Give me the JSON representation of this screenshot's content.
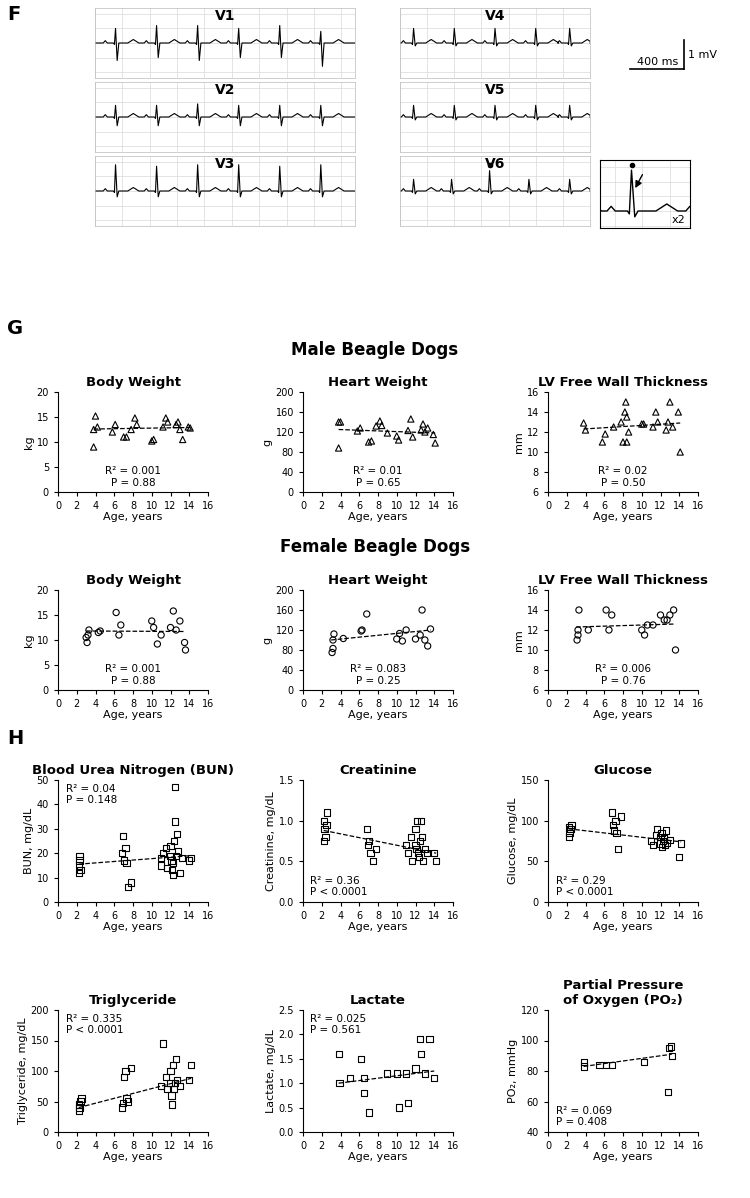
{
  "ecg_panel": {
    "label": "F",
    "mv_range": [
      -1.2,
      1.2
    ],
    "leads": [
      {
        "name": "V1",
        "duration_ms": 1900,
        "beats_ms": [
          150,
          450,
          750,
          1050,
          1350,
          1650
        ],
        "r_mv": [
          0.5,
          0.6,
          0.6,
          0.5,
          0.6,
          0.4
        ],
        "s_mv": [
          -0.6,
          -0.5,
          -0.6,
          -0.5,
          -0.5,
          -0.8
        ]
      },
      {
        "name": "V2",
        "duration_ms": 1900,
        "beats_ms": [
          150,
          450,
          750,
          1050,
          1350,
          1650
        ],
        "r_mv": [
          0.4,
          0.4,
          0.45,
          0.4,
          0.4,
          0.4
        ],
        "s_mv": [
          -0.3,
          -0.3,
          -0.3,
          -0.3,
          -0.3,
          -0.3
        ]
      },
      {
        "name": "V3",
        "duration_ms": 1900,
        "beats_ms": [
          150,
          450,
          750,
          1050,
          1350,
          1650
        ],
        "r_mv": [
          0.9,
          0.85,
          0.9,
          0.9,
          0.85,
          0.9
        ],
        "s_mv": [
          -0.2,
          -0.2,
          -0.2,
          -0.2,
          -0.2,
          -0.2
        ]
      },
      {
        "name": "V4",
        "duration_ms": 1400,
        "beats_ms": [
          100,
          400,
          700,
          1000,
          1250
        ],
        "r_mv": [
          0.5,
          0.5,
          0.5,
          0.5,
          0.5
        ],
        "s_mv": [
          -0.1,
          -0.1,
          -0.1,
          -0.1,
          -0.1
        ]
      },
      {
        "name": "V5",
        "duration_ms": 1400,
        "beats_ms": [
          100,
          400,
          700,
          1000,
          1250
        ],
        "r_mv": [
          0.4,
          0.4,
          0.4,
          0.4,
          0.4
        ],
        "s_mv": [
          -0.1,
          -0.1,
          -0.1,
          -0.1,
          -0.1
        ]
      },
      {
        "name": "V6",
        "duration_ms": 1400,
        "beats_ms": [
          100,
          380,
          660,
          950,
          1250
        ],
        "r_mv": [
          0.4,
          0.4,
          0.7,
          0.4,
          0.4
        ],
        "s_mv": [
          -0.1,
          -0.1,
          -0.1,
          -0.1,
          -0.1
        ]
      }
    ],
    "marked_lead": "V6",
    "marked_beat": 2,
    "scale_bar": {
      "ms": 400,
      "mv": 1,
      "ms_label": "400 ms",
      "mv_label": "1 mV"
    },
    "inset": {
      "zoom": 2,
      "label": "x2"
    }
  },
  "panel_G": {
    "label": "G",
    "row_titles": [
      "Male Beagle Dogs",
      "Female Beagle Dogs"
    ]
  },
  "panel_H": {
    "label": "H"
  },
  "chart_data": [
    {
      "type": "scatter",
      "title": "Body Weight",
      "xlabel": "Age, years",
      "ylabel": "kg",
      "marker": "triangle",
      "color": "#000000",
      "x": [
        3.8,
        3.8,
        4.0,
        4.2,
        5.8,
        6.1,
        7.0,
        7.3,
        7.8,
        8.2,
        8.4,
        10.0,
        10.2,
        11.2,
        11.5,
        11.7,
        12.6,
        12.8,
        13.0,
        13.3,
        13.9,
        14.1
      ],
      "values": [
        9,
        12.5,
        15.2,
        13,
        12,
        13.5,
        11,
        11,
        12.5,
        14.8,
        13.5,
        10.2,
        10.5,
        13,
        14.8,
        14,
        13.5,
        14,
        12.5,
        10.5,
        13,
        12.8
      ],
      "trend": {
        "x": [
          3.8,
          14.1
        ],
        "values": [
          12.6,
          12.9
        ],
        "line_style": "dashed",
        "color": "#000000"
      },
      "annotations": [
        "R² = 0.001",
        "P = 0.88"
      ],
      "xlim": [
        0,
        16
      ],
      "xticks": [
        0,
        2,
        4,
        6,
        8,
        10,
        12,
        14,
        16
      ],
      "ylim": [
        0,
        20
      ],
      "yticks": [
        0,
        5,
        10,
        15,
        20
      ]
    },
    {
      "type": "scatter",
      "title": "Heart Weight",
      "xlabel": "Age, years",
      "ylabel": "g",
      "marker": "triangle",
      "color": "#000000",
      "x": [
        3.8,
        3.8,
        4.0,
        5.8,
        6.1,
        7.0,
        7.3,
        7.8,
        8.2,
        8.4,
        9.0,
        10.0,
        10.2,
        11.2,
        11.5,
        11.7,
        12.6,
        12.8,
        13.0,
        13.3,
        13.9,
        14.1
      ],
      "values": [
        88,
        140,
        140,
        122,
        128,
        100,
        102,
        132,
        142,
        133,
        118,
        112,
        104,
        123,
        146,
        110,
        124,
        136,
        120,
        128,
        115,
        98
      ],
      "trend": {
        "x": [
          3.8,
          14.1
        ],
        "values": [
          125,
          118
        ],
        "line_style": "dashed",
        "color": "#000000"
      },
      "annotations": [
        "R² = 0.01",
        "P = 0.65"
      ],
      "xlim": [
        0,
        16
      ],
      "xticks": [
        0,
        2,
        4,
        6,
        8,
        10,
        12,
        14,
        16
      ],
      "ylim": [
        0,
        200
      ],
      "yticks": [
        0,
        40,
        80,
        120,
        160,
        200
      ]
    },
    {
      "type": "scatter",
      "title": "LV Free Wall Thickness",
      "xlabel": "Age, years",
      "ylabel": "mm",
      "marker": "triangle",
      "color": "#000000",
      "x": [
        3.8,
        4.0,
        5.8,
        6.1,
        7.0,
        7.8,
        8.0,
        8.2,
        8.3,
        8.4,
        8.6,
        8.4,
        10.0,
        10.2,
        11.2,
        11.5,
        11.7,
        12.6,
        12.8,
        13.0,
        13.3,
        13.9,
        14.1
      ],
      "values": [
        12.9,
        12.2,
        11,
        11.8,
        12.5,
        13,
        11,
        14,
        15,
        13.5,
        12,
        11,
        12.8,
        12.8,
        12.5,
        14,
        13,
        12.2,
        13,
        15,
        12.5,
        14,
        10
      ],
      "trend": {
        "x": [
          3.8,
          14.1
        ],
        "values": [
          12.3,
          12.9
        ],
        "line_style": "dashed",
        "color": "#000000"
      },
      "annotations": [
        "R² = 0.02",
        "P = 0.50"
      ],
      "xlim": [
        0,
        16
      ],
      "xticks": [
        0,
        2,
        4,
        6,
        8,
        10,
        12,
        14,
        16
      ],
      "ylim": [
        6,
        16
      ],
      "yticks": [
        6,
        8,
        10,
        12,
        14,
        16
      ]
    },
    {
      "type": "scatter",
      "title": "Body Weight",
      "xlabel": "Age, years",
      "ylabel": "kg",
      "marker": "circle",
      "color": "#000000",
      "x": [
        3.0,
        3.1,
        3.2,
        3.3,
        4.3,
        4.5,
        6.2,
        6.5,
        6.7,
        10.0,
        10.2,
        10.6,
        11.0,
        12.0,
        12.3,
        12.6,
        13.0,
        13.5,
        13.6
      ],
      "values": [
        10.5,
        9.5,
        11,
        12,
        11.5,
        11.8,
        15.5,
        11,
        13,
        13.8,
        12.5,
        9.2,
        11,
        12.5,
        15.8,
        12,
        13.8,
        9.5,
        8
      ],
      "trend": {
        "x": [
          3.0,
          13.6
        ],
        "values": [
          11.8,
          11.7
        ],
        "line_style": "dashed",
        "color": "#000000"
      },
      "annotations": [
        "R² = 0.001",
        "P = 0.88"
      ],
      "xlim": [
        0,
        16
      ],
      "xticks": [
        0,
        2,
        4,
        6,
        8,
        10,
        12,
        14,
        16
      ],
      "ylim": [
        0,
        20
      ],
      "yticks": [
        0,
        5,
        10,
        15,
        20
      ]
    },
    {
      "type": "scatter",
      "title": "Heart Weight",
      "xlabel": "Age, years",
      "ylabel": "g",
      "marker": "circle",
      "color": "#000000",
      "x": [
        3.1,
        3.2,
        3.2,
        3.3,
        4.3,
        6.2,
        6.3,
        6.8,
        10.0,
        10.3,
        10.6,
        11.0,
        12.0,
        12.5,
        12.7,
        13.0,
        13.3,
        13.6
      ],
      "values": [
        75,
        83,
        100,
        112,
        103,
        118,
        120,
        152,
        102,
        113,
        98,
        120,
        102,
        110,
        160,
        100,
        88,
        122
      ],
      "trend": {
        "x": [
          3.0,
          13.6
        ],
        "values": [
          100,
          120
        ],
        "line_style": "dashed",
        "color": "#000000"
      },
      "annotations": [
        "R² = 0.083",
        "P = 0.25"
      ],
      "xlim": [
        0,
        16
      ],
      "xticks": [
        0,
        2,
        4,
        6,
        8,
        10,
        12,
        14,
        16
      ],
      "ylim": [
        0,
        200
      ],
      "yticks": [
        0,
        40,
        80,
        120,
        160,
        200
      ]
    },
    {
      "type": "scatter",
      "title": "LV Free Wall Thickness",
      "xlabel": "Age, years",
      "ylabel": "mm",
      "marker": "circle",
      "color": "#000000",
      "x": [
        3.1,
        3.2,
        3.2,
        3.3,
        4.3,
        6.2,
        6.5,
        6.8,
        10.0,
        10.3,
        10.6,
        11.2,
        12.0,
        12.4,
        12.7,
        13.0,
        13.4,
        13.6
      ],
      "values": [
        11,
        11.5,
        12,
        14,
        12,
        14,
        12,
        13.5,
        12,
        11.5,
        12.5,
        12.5,
        13.5,
        13,
        13,
        13.5,
        14,
        10
      ],
      "trend": {
        "x": [
          3.0,
          13.6
        ],
        "values": [
          12.3,
          12.6
        ],
        "line_style": "dashed",
        "color": "#000000"
      },
      "annotations": [
        "R² = 0.006",
        "P = 0.76"
      ],
      "xlim": [
        0,
        16
      ],
      "xticks": [
        0,
        2,
        4,
        6,
        8,
        10,
        12,
        14,
        16
      ],
      "ylim": [
        6,
        16
      ],
      "yticks": [
        6,
        8,
        10,
        12,
        14,
        16
      ]
    },
    {
      "type": "scatter",
      "title": "Blood Urea Nitrogen (BUN)",
      "xlabel": "Age, years",
      "ylabel": "BUN, mg/dL",
      "marker": "square",
      "color": "#000000",
      "x": [
        2.2,
        2.2,
        2.3,
        2.3,
        2.4,
        6.8,
        6.9,
        7.0,
        7.2,
        7.5,
        7.8,
        7.3,
        11.0,
        11.0,
        11.2,
        11.5,
        11.6,
        12.0,
        12.0,
        12.1,
        12.2,
        12.3,
        12.3,
        12.4,
        12.5,
        12.5,
        12.6,
        12.7,
        12.8,
        13.0,
        13.2,
        14.0,
        14.2
      ],
      "values": [
        12,
        15,
        17,
        19,
        13,
        20,
        27,
        17,
        22,
        6,
        8,
        16,
        15,
        18,
        20,
        22,
        14,
        23,
        19,
        17,
        13,
        11,
        16,
        25,
        33,
        47,
        19,
        28,
        21,
        12,
        18,
        17,
        18
      ],
      "trend": {
        "x": [
          2.2,
          14.2
        ],
        "values": [
          15.5,
          19
        ],
        "line_style": "dashed",
        "color": "#000000"
      },
      "annotations": [
        "R² = 0.04",
        "P = 0.148"
      ],
      "xlim": [
        0,
        16
      ],
      "xticks": [
        0,
        2,
        4,
        6,
        8,
        10,
        12,
        14,
        16
      ],
      "ylim": [
        0,
        50
      ],
      "yticks": [
        0,
        10,
        20,
        30,
        40,
        50
      ]
    },
    {
      "type": "scatter",
      "title": "Creatinine",
      "xlabel": "Age, years",
      "ylabel": "Creatinine, mg/dL",
      "marker": "square",
      "color": "#000000",
      "x": [
        2.2,
        2.3,
        2.2,
        2.5,
        2.6,
        2.4,
        6.8,
        6.9,
        7.0,
        7.2,
        7.5,
        7.8,
        11.0,
        11.2,
        11.5,
        11.6,
        12.0,
        12.0,
        12.1,
        12.2,
        12.3,
        12.4,
        12.5,
        12.6,
        12.7,
        12.8,
        13.0,
        13.2,
        14.0,
        14.2
      ],
      "values": [
        1.0,
        0.9,
        0.75,
        0.95,
        1.1,
        0.8,
        0.9,
        0.7,
        0.75,
        0.6,
        0.5,
        0.65,
        0.7,
        0.6,
        0.8,
        0.5,
        0.7,
        0.9,
        0.65,
        1.0,
        0.6,
        0.55,
        0.75,
        1.0,
        0.8,
        0.5,
        0.65,
        0.6,
        0.6,
        0.5
      ],
      "trend": {
        "x": [
          2.2,
          14.2
        ],
        "values": [
          0.88,
          0.6
        ],
        "line_style": "dashed",
        "color": "#000000"
      },
      "annotations": [
        "R² = 0.36",
        "P < 0.0001"
      ],
      "xlim": [
        0,
        16
      ],
      "xticks": [
        0,
        2,
        4,
        6,
        8,
        10,
        12,
        14,
        16
      ],
      "ylim": [
        0.0,
        1.5
      ],
      "yticks": [
        0.0,
        0.5,
        1.0,
        1.5
      ]
    },
    {
      "type": "scatter",
      "title": "Glucose",
      "xlabel": "Age, years",
      "ylabel": "Glucose, mg/dL",
      "marker": "square",
      "color": "#000000",
      "x": [
        2.2,
        2.3,
        2.2,
        2.5,
        2.4,
        6.8,
        6.9,
        7.0,
        7.2,
        7.5,
        7.8,
        7.3,
        11.0,
        11.2,
        11.5,
        11.6,
        12.0,
        12.0,
        12.1,
        12.2,
        12.3,
        12.4,
        12.5,
        12.6,
        12.7,
        13.0,
        14.0,
        14.2
      ],
      "values": [
        80,
        85,
        92,
        95,
        90,
        110,
        95,
        88,
        100,
        65,
        105,
        85,
        75,
        70,
        82,
        90,
        72,
        80,
        85,
        68,
        75,
        78,
        70,
        88,
        73,
        76,
        55,
        72
      ],
      "trend": {
        "x": [
          2.2,
          14.2
        ],
        "values": [
          90,
          74
        ],
        "line_style": "dashed",
        "color": "#000000"
      },
      "annotations": [
        "R² = 0.29",
        "P < 0.0001"
      ],
      "xlim": [
        0,
        16
      ],
      "xticks": [
        0,
        2,
        4,
        6,
        8,
        10,
        12,
        14,
        16
      ],
      "ylim": [
        0,
        150
      ],
      "yticks": [
        0,
        50,
        100,
        150
      ]
    },
    {
      "type": "scatter",
      "title": "Triglyceride",
      "xlabel": "Age, years",
      "ylabel": "Triglyceride, mg/dL",
      "marker": "square",
      "color": "#000000",
      "x": [
        2.2,
        2.3,
        2.2,
        2.5,
        2.4,
        6.8,
        6.9,
        7.0,
        7.2,
        7.5,
        7.8,
        7.3,
        11.0,
        11.2,
        11.5,
        11.6,
        12.0,
        12.0,
        12.1,
        12.2,
        12.3,
        12.4,
        12.5,
        12.6,
        12.7,
        13.0,
        14.0,
        14.2
      ],
      "values": [
        35,
        40,
        45,
        55,
        50,
        40,
        48,
        90,
        100,
        50,
        105,
        55,
        75,
        145,
        90,
        70,
        100,
        80,
        60,
        45,
        110,
        70,
        80,
        120,
        85,
        75,
        85,
        110
      ],
      "trend": {
        "x": [
          2.2,
          14.2
        ],
        "values": [
          40,
          88
        ],
        "line_style": "dashed",
        "color": "#000000"
      },
      "annotations": [
        "R² = 0.335",
        "P < 0.0001"
      ],
      "xlim": [
        0,
        16
      ],
      "xticks": [
        0,
        2,
        4,
        6,
        8,
        10,
        12,
        14,
        16
      ],
      "ylim": [
        0,
        200
      ],
      "yticks": [
        0,
        50,
        100,
        150,
        200
      ]
    },
    {
      "type": "scatter",
      "title": "Lactate",
      "xlabel": "Age, years",
      "ylabel": "Lactate, mg/dL",
      "marker": "square",
      "color": "#000000",
      "x": [
        3.8,
        3.9,
        5.0,
        6.2,
        6.5,
        6.5,
        7.0,
        9.0,
        10.0,
        10.2,
        11.0,
        11.2,
        12.0,
        12.5,
        12.6,
        13.0,
        13.5,
        14.0
      ],
      "values": [
        1.6,
        1.0,
        1.1,
        1.5,
        0.8,
        1.1,
        0.4,
        1.2,
        1.2,
        0.5,
        1.2,
        0.6,
        1.3,
        1.9,
        1.6,
        1.2,
        1.9,
        1.1
      ],
      "trend": {
        "x": [
          3.8,
          14.0
        ],
        "values": [
          1.0,
          1.25
        ],
        "line_style": "dashed",
        "color": "#000000"
      },
      "annotations": [
        "R² = 0.025",
        "P = 0.561"
      ],
      "xlim": [
        0,
        16
      ],
      "xticks": [
        0,
        2,
        4,
        6,
        8,
        10,
        12,
        14,
        16
      ],
      "ylim": [
        0.0,
        2.5
      ],
      "yticks": [
        0.0,
        0.5,
        1.0,
        1.5,
        2.0,
        2.5
      ]
    },
    {
      "type": "scatter",
      "title": "Partial Pressure\nof Oxygen (PO₂)",
      "xlabel": "Age, years",
      "ylabel": "PO₂, mmHg",
      "marker": "square",
      "color": "#000000",
      "x": [
        3.8,
        3.8,
        5.5,
        6.2,
        6.8,
        10.2,
        12.8,
        12.9,
        13.1,
        13.2
      ],
      "values": [
        83,
        86,
        84,
        84,
        84,
        86,
        66,
        95,
        96,
        90
      ],
      "trend": {
        "x": [
          3.8,
          13.2
        ],
        "values": [
          83,
          91
        ],
        "line_style": "dashed",
        "color": "#000000"
      },
      "annotations": [
        "R² = 0.069",
        "P = 0.408"
      ],
      "xlim": [
        0,
        16
      ],
      "xticks": [
        0,
        2,
        4,
        6,
        8,
        10,
        12,
        14,
        16
      ],
      "ylim": [
        40,
        120
      ],
      "yticks": [
        40,
        60,
        80,
        100,
        120
      ]
    }
  ]
}
